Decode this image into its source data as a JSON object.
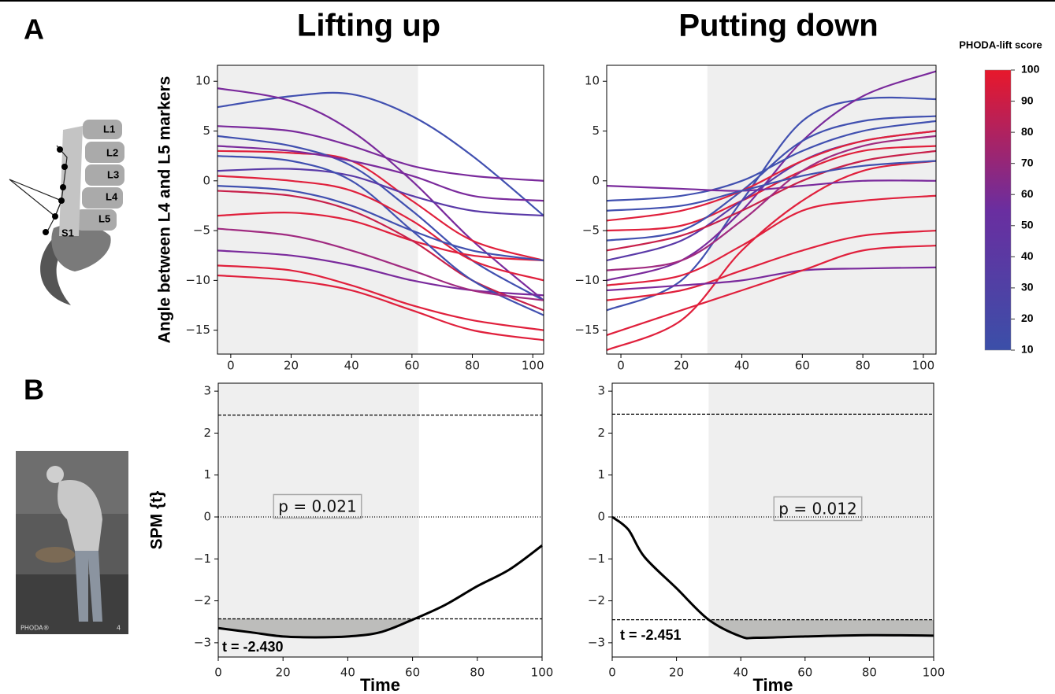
{
  "figure": {
    "panel_labels": [
      "A",
      "B"
    ],
    "diagram_labels": [
      "L1",
      "L2",
      "L3",
      "L4",
      "L5",
      "S1"
    ],
    "photo_caption": [
      "PHODA®",
      "4"
    ],
    "colorbar": {
      "title": "PHODA-lift score",
      "lim": [
        10,
        100
      ],
      "ticks": [
        10,
        20,
        30,
        40,
        50,
        60,
        70,
        80,
        90,
        100
      ],
      "colors": [
        "#3b4fa8",
        "#6a2ea0",
        "#e8182b"
      ]
    }
  },
  "chart_data": [
    {
      "type": "line",
      "title": "Lifting up",
      "ylabel": "Angle between L4 and L5 markers",
      "x": [
        -4.4,
        20,
        40,
        60,
        80,
        103.6
      ],
      "xlim": [
        -4.4,
        103.6
      ],
      "ylim": [
        -17.4,
        11.6
      ],
      "xticks": [
        0,
        20,
        40,
        60,
        80,
        100
      ],
      "yticks": [
        -15,
        -10,
        -5,
        0,
        5,
        10
      ],
      "shade": [
        -4.4,
        62
      ],
      "series": [
        {
          "color": "#4150b0",
          "values": [
            7.4,
            8.5,
            8.7,
            6.5,
            2.5,
            -3.5
          ]
        },
        {
          "color": "#7a2a9c",
          "values": [
            9.3,
            8.0,
            5.0,
            0,
            -6,
            -12
          ]
        },
        {
          "color": "#e0203c",
          "values": [
            3.0,
            2.8,
            2.0,
            -2,
            -6,
            -8
          ]
        },
        {
          "color": "#4150b0",
          "values": [
            4.5,
            3.5,
            1.5,
            -3,
            -8,
            -12
          ]
        },
        {
          "color": "#e0203c",
          "values": [
            -3.5,
            -3.2,
            -4.0,
            -6,
            -7.5,
            -8
          ]
        },
        {
          "color": "#7a2a9c",
          "values": [
            -7.0,
            -7.5,
            -8.5,
            -10,
            -11,
            -11.5
          ]
        },
        {
          "color": "#e0203c",
          "values": [
            -8.5,
            -9.0,
            -10.5,
            -12.5,
            -14,
            -15
          ]
        },
        {
          "color": "#5a3aa8",
          "values": [
            1.0,
            1.2,
            0.5,
            -1.5,
            -3,
            -3.5
          ]
        },
        {
          "color": "#7a2a9c",
          "values": [
            5.5,
            5.0,
            3.5,
            1.5,
            0.5,
            0
          ]
        },
        {
          "color": "#c8204a",
          "values": [
            -1.0,
            -1.5,
            -3,
            -6,
            -10,
            -13
          ]
        },
        {
          "color": "#4150b0",
          "values": [
            2.5,
            2.0,
            0,
            -5,
            -10,
            -13.5
          ]
        },
        {
          "color": "#a02a80",
          "values": [
            -4.8,
            -5.5,
            -7,
            -9,
            -11,
            -12
          ]
        },
        {
          "color": "#e0203c",
          "values": [
            0.5,
            0,
            -1,
            -4,
            -8,
            -10
          ]
        },
        {
          "color": "#4150b0",
          "values": [
            -0.5,
            -1,
            -2.5,
            -5,
            -7,
            -8
          ]
        },
        {
          "color": "#e0203c",
          "values": [
            -9.5,
            -10,
            -11,
            -13,
            -15,
            -16
          ]
        },
        {
          "color": "#7a2a9c",
          "values": [
            3.5,
            3.0,
            2.0,
            0.5,
            -1.5,
            -2
          ]
        }
      ]
    },
    {
      "type": "line",
      "title": "Putting down",
      "x": [
        -4.7,
        20,
        40,
        60,
        80,
        104.2
      ],
      "xlim": [
        -4.7,
        104.2
      ],
      "ylim": [
        -17.4,
        11.6
      ],
      "xticks": [
        0,
        20,
        40,
        60,
        80,
        100
      ],
      "yticks": [
        -15,
        -10,
        -5,
        0,
        5,
        10
      ],
      "shade": [
        28.6,
        104.2
      ],
      "series": [
        {
          "color": "#4150b0",
          "values": [
            -13,
            -10,
            -2,
            6,
            8.2,
            8.2
          ]
        },
        {
          "color": "#7a2a9c",
          "values": [
            -10,
            -8,
            -3,
            4,
            8.5,
            11
          ]
        },
        {
          "color": "#e0203c",
          "values": [
            -17,
            -14,
            -7,
            -2,
            1,
            2
          ]
        },
        {
          "color": "#e0203c",
          "values": [
            -5,
            -4.5,
            -2,
            1,
            3,
            3.5
          ]
        },
        {
          "color": "#4150b0",
          "values": [
            -2,
            -1.5,
            0,
            3,
            5,
            6
          ]
        },
        {
          "color": "#7a2a9c",
          "values": [
            -0.5,
            -0.8,
            -1,
            -0.5,
            0,
            0
          ]
        },
        {
          "color": "#e0203c",
          "values": [
            -12,
            -11,
            -9,
            -7,
            -5.5,
            -5
          ]
        },
        {
          "color": "#7a2a9c",
          "values": [
            -11,
            -10.5,
            -10,
            -9,
            -8.8,
            -8.7
          ]
        },
        {
          "color": "#5a3aa8",
          "values": [
            -8,
            -6,
            -2,
            2,
            4,
            5
          ]
        },
        {
          "color": "#c8204a",
          "values": [
            -7,
            -5.5,
            -3,
            0,
            2,
            3
          ]
        },
        {
          "color": "#e0203c",
          "values": [
            -15.5,
            -13,
            -11,
            -9,
            -7,
            -6.5
          ]
        },
        {
          "color": "#4150b0",
          "values": [
            -6,
            -5,
            -1,
            4,
            6,
            6.5
          ]
        },
        {
          "color": "#a02a80",
          "values": [
            -9,
            -8,
            -4,
            1,
            3.5,
            4.5
          ]
        },
        {
          "color": "#e0203c",
          "values": [
            -4,
            -3,
            -1,
            2,
            4,
            5
          ]
        },
        {
          "color": "#e0203c",
          "values": [
            -10.5,
            -9.5,
            -6.5,
            -3,
            -2,
            -1.5
          ]
        },
        {
          "color": "#4150b0",
          "values": [
            -3,
            -2.5,
            -1,
            0.5,
            1.5,
            2
          ]
        }
      ]
    },
    {
      "type": "spm",
      "ylabel": "SPM {t}",
      "xlabel": "Time",
      "x": [
        0,
        10,
        20,
        30,
        40,
        50,
        60,
        70,
        80,
        90,
        100
      ],
      "values": [
        -2.65,
        -2.75,
        -2.85,
        -2.87,
        -2.85,
        -2.75,
        -2.45,
        -2.1,
        -1.65,
        -1.25,
        -0.68
      ],
      "xlim": [
        0,
        100
      ],
      "ylim": [
        -3.34,
        3.19
      ],
      "xticks": [
        0,
        20,
        40,
        60,
        80,
        100
      ],
      "yticks": [
        -3,
        -2,
        -1,
        0,
        1,
        2,
        3
      ],
      "shade": [
        0,
        62
      ],
      "thresholds": [
        2.43,
        -2.43
      ],
      "zero_line": 0,
      "annotations": [
        "p = 0.021",
        "t = -2.430"
      ]
    },
    {
      "type": "spm",
      "xlabel": "Time",
      "x": [
        0,
        5,
        10,
        20,
        30,
        40,
        45,
        60,
        80,
        100
      ],
      "values": [
        0,
        -0.3,
        -0.95,
        -1.7,
        -2.45,
        -2.85,
        -2.88,
        -2.85,
        -2.82,
        -2.83
      ],
      "xlim": [
        0,
        100
      ],
      "ylim": [
        -3.34,
        3.19
      ],
      "xticks": [
        0,
        20,
        40,
        60,
        80,
        100
      ],
      "yticks": [
        -3,
        -2,
        -1,
        0,
        1,
        2,
        3
      ],
      "shade": [
        30,
        100
      ],
      "thresholds": [
        2.451,
        -2.451
      ],
      "zero_line": 0,
      "annotations": [
        "p = 0.012",
        "t = -2.451"
      ]
    }
  ]
}
